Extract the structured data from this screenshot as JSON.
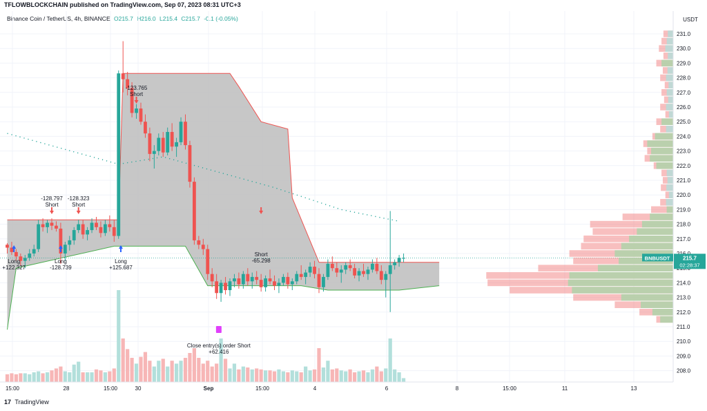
{
  "header": {
    "publisher": "TFLOWBLOCKCHAIN published on TradingView.com, Sep 07, 2023 08:31 UTC+3"
  },
  "legend": {
    "symbol": "Binance Coin / TetherUS, 4h, BINANCE",
    "open": "O215.7",
    "high": "H216.0",
    "low": "L215.4",
    "close": "C215.7",
    "change": "-0.1 (-0.05%)"
  },
  "footer": {
    "brand": "TradingView"
  },
  "colors": {
    "up": "#26a69a",
    "down": "#ef5350",
    "band": "#b2b2b2",
    "vol_up": "#b2dfdb",
    "vol_down": "#f7b6b6",
    "vp_up": "#a5d6a7",
    "vp_down": "#f28b8b",
    "ma": "#26a69a",
    "price_tag": "#26a69a"
  },
  "chart_data": {
    "type": "candlestick",
    "currency": "USDT",
    "ticker": "BNBUSDT",
    "last_price": "215.7",
    "countdown": "02:28:37",
    "y_ticks": [
      "231.0",
      "230.0",
      "229.0",
      "228.0",
      "227.0",
      "226.0",
      "225.0",
      "224.0",
      "223.0",
      "222.0",
      "221.0",
      "220.0",
      "219.0",
      "218.0",
      "217.0",
      "216.0",
      "215.0",
      "214.0",
      "213.0",
      "212.0",
      "211.0",
      "210.0",
      "209.0",
      "208.0"
    ],
    "ylim": [
      207.7,
      231.6
    ],
    "x_ticks": [
      "15:00",
      "28",
      "15:00",
      "30",
      "Sep",
      "15:00",
      "4",
      "6",
      "8",
      "15:00",
      "11",
      "13"
    ],
    "candles": [
      [
        216.6,
        216.7,
        216.0,
        216.4
      ],
      [
        216.4,
        216.8,
        215.9,
        216.1
      ],
      [
        216.1,
        216.3,
        215.5,
        215.8
      ],
      [
        215.8,
        216.0,
        215.2,
        215.5
      ],
      [
        215.5,
        215.9,
        215.0,
        215.7
      ],
      [
        215.7,
        216.3,
        215.5,
        216.0
      ],
      [
        216.0,
        216.6,
        215.8,
        216.3
      ],
      [
        216.3,
        218.3,
        216.1,
        218.0
      ],
      [
        218.0,
        218.4,
        217.5,
        217.8
      ],
      [
        217.8,
        218.3,
        217.4,
        218.1
      ],
      [
        218.1,
        218.4,
        217.6,
        217.9
      ],
      [
        217.9,
        218.2,
        217.5,
        217.7
      ],
      [
        217.7,
        218.1,
        215.3,
        216.0
      ],
      [
        216.0,
        216.8,
        215.5,
        216.6
      ],
      [
        216.6,
        217.2,
        216.2,
        216.9
      ],
      [
        216.9,
        217.8,
        216.6,
        217.6
      ],
      [
        217.6,
        218.3,
        217.4,
        218.0
      ],
      [
        218.0,
        218.3,
        217.0,
        217.3
      ],
      [
        217.3,
        217.8,
        216.9,
        217.6
      ],
      [
        217.6,
        218.4,
        217.4,
        218.1
      ],
      [
        218.1,
        218.5,
        217.6,
        217.8
      ],
      [
        217.8,
        218.2,
        217.1,
        217.4
      ],
      [
        217.4,
        218.3,
        217.2,
        218.0
      ],
      [
        218.0,
        218.6,
        217.5,
        217.8
      ],
      [
        217.8,
        218.3,
        216.8,
        217.2
      ],
      [
        217.2,
        228.5,
        217.0,
        228.3
      ],
      [
        228.3,
        230.5,
        227.0,
        227.9
      ],
      [
        227.9,
        228.4,
        226.8,
        227.3
      ],
      [
        227.3,
        227.7,
        225.3,
        225.6
      ],
      [
        225.6,
        226.2,
        225.2,
        225.9
      ],
      [
        225.9,
        226.3,
        224.8,
        225.0
      ],
      [
        225.0,
        225.5,
        223.9,
        224.2
      ],
      [
        224.2,
        224.6,
        222.3,
        222.8
      ],
      [
        222.8,
        223.4,
        221.8,
        223.0
      ],
      [
        223.0,
        224.2,
        222.7,
        223.9
      ],
      [
        223.9,
        224.3,
        222.6,
        222.9
      ],
      [
        222.9,
        224.6,
        222.7,
        224.3
      ],
      [
        224.3,
        224.9,
        223.0,
        223.3
      ],
      [
        223.3,
        223.9,
        222.6,
        223.6
      ],
      [
        223.6,
        225.3,
        223.4,
        225.0
      ],
      [
        225.0,
        225.5,
        223.1,
        223.4
      ],
      [
        223.4,
        223.7,
        220.5,
        220.9
      ],
      [
        220.9,
        221.2,
        216.6,
        216.9
      ],
      [
        216.9,
        217.2,
        216.3,
        216.6
      ],
      [
        216.6,
        217.0,
        215.9,
        216.3
      ],
      [
        216.3,
        216.6,
        214.2,
        214.6
      ],
      [
        214.6,
        215.0,
        213.7,
        214.1
      ],
      [
        214.1,
        214.6,
        212.9,
        213.3
      ],
      [
        213.3,
        214.2,
        212.7,
        214.0
      ],
      [
        214.0,
        214.4,
        213.2,
        213.5
      ],
      [
        213.5,
        214.3,
        213.1,
        214.1
      ],
      [
        214.1,
        214.6,
        213.7,
        214.3
      ],
      [
        214.3,
        214.7,
        213.6,
        213.9
      ],
      [
        213.9,
        214.8,
        213.6,
        214.6
      ],
      [
        214.6,
        215.0,
        213.8,
        214.1
      ],
      [
        214.1,
        214.7,
        213.6,
        214.4
      ],
      [
        214.4,
        214.8,
        213.9,
        214.2
      ],
      [
        214.2,
        214.6,
        213.4,
        213.7
      ],
      [
        213.7,
        214.5,
        213.4,
        214.3
      ],
      [
        214.3,
        214.9,
        213.9,
        214.1
      ],
      [
        214.1,
        214.5,
        213.5,
        213.8
      ],
      [
        213.8,
        214.3,
        213.3,
        214.0
      ],
      [
        214.0,
        214.6,
        213.8,
        214.4
      ],
      [
        214.4,
        214.7,
        213.6,
        213.9
      ],
      [
        213.9,
        214.3,
        213.5,
        214.1
      ],
      [
        214.1,
        214.8,
        213.9,
        214.6
      ],
      [
        214.6,
        215.2,
        214.2,
        214.4
      ],
      [
        214.4,
        214.9,
        213.9,
        214.7
      ],
      [
        214.7,
        215.4,
        214.4,
        215.1
      ],
      [
        215.1,
        215.5,
        214.3,
        214.6
      ],
      [
        214.6,
        215.0,
        213.3,
        213.7
      ],
      [
        213.7,
        214.6,
        213.4,
        214.4
      ],
      [
        214.4,
        215.6,
        214.2,
        215.3
      ],
      [
        215.3,
        215.8,
        214.8,
        215.0
      ],
      [
        215.0,
        215.4,
        214.4,
        214.7
      ],
      [
        214.7,
        215.2,
        214.0,
        214.9
      ],
      [
        214.9,
        215.4,
        214.6,
        215.2
      ],
      [
        215.2,
        215.6,
        214.8,
        215.0
      ],
      [
        215.0,
        215.3,
        214.3,
        214.5
      ],
      [
        214.5,
        215.0,
        214.1,
        214.8
      ],
      [
        214.8,
        215.3,
        214.4,
        214.6
      ],
      [
        214.6,
        215.1,
        214.2,
        214.9
      ],
      [
        214.9,
        215.6,
        214.7,
        215.3
      ],
      [
        215.3,
        215.7,
        214.6,
        214.8
      ],
      [
        214.8,
        215.2,
        213.9,
        214.2
      ],
      [
        214.2,
        214.8,
        213.0,
        214.6
      ],
      [
        214.6,
        218.9,
        212.0,
        215.2
      ],
      [
        215.2,
        215.6,
        214.9,
        215.4
      ],
      [
        215.4,
        215.9,
        215.1,
        215.7
      ],
      [
        215.7,
        216.0,
        215.4,
        215.7
      ]
    ],
    "volumes": [
      0.8,
      0.9,
      0.8,
      0.9,
      0.9,
      0.8,
      1.0,
      1.1,
      0.9,
      1.0,
      1.2,
      1.4,
      1.6,
      1.1,
      1.0,
      1.8,
      2.1,
      1.0,
      1.0,
      1.0,
      1.3,
      1.2,
      1.0,
      1.1,
      1.4,
      9.5,
      4.5,
      3.4,
      2.5,
      1.9,
      2.6,
      3.1,
      2.2,
      1.6,
      2.2,
      2.4,
      1.6,
      2.2,
      1.9,
      2.2,
      2.5,
      3.0,
      3.5,
      2.5,
      1.9,
      2.2,
      1.6,
      1.9,
      4.5,
      2.4,
      1.4,
      1.9,
      1.3,
      1.6,
      1.5,
      1.3,
      1.4,
      1.3,
      1.2,
      1.2,
      1.1,
      1.3,
      1.1,
      1.0,
      1.2,
      1.1,
      1.0,
      1.6,
      1.2,
      1.3,
      3.5,
      1.5,
      2.2,
      1.3,
      1.4,
      1.2,
      1.1,
      1.3,
      1.0,
      1.1,
      1.2,
      1.0,
      1.3,
      1.6,
      1.1,
      1.4,
      4.5,
      1.3,
      1.0,
      0.4
    ],
    "band": {
      "upper": [
        [
          0,
          218.3
        ],
        [
          25,
          218.3
        ],
        [
          26,
          228.3
        ],
        [
          50,
          228.3
        ],
        [
          52,
          227.4
        ],
        [
          57,
          225.0
        ],
        [
          63,
          224.5
        ],
        [
          64,
          219.8
        ],
        [
          70,
          215.4
        ],
        [
          97,
          215.4
        ]
      ],
      "lower": [
        [
          0,
          210.8
        ],
        [
          2,
          215.0
        ],
        [
          24,
          216.5
        ],
        [
          40,
          216.5
        ],
        [
          45,
          213.8
        ],
        [
          66,
          213.8
        ],
        [
          72,
          213.5
        ],
        [
          88,
          213.5
        ],
        [
          97,
          213.8
        ]
      ]
    },
    "moving_average": [
      [
        0,
        224.2
      ],
      [
        25,
        222.1
      ],
      [
        35,
        222.6
      ],
      [
        60,
        220.5
      ],
      [
        75,
        219.0
      ],
      [
        88,
        218.2
      ]
    ],
    "volume_profile": [
      [
        231.0,
        0,
        1.5
      ],
      [
        230.5,
        0,
        1.8
      ],
      [
        230.0,
        0,
        2.2
      ],
      [
        229.5,
        0,
        1.5
      ],
      [
        229.0,
        1.8,
        2.6
      ],
      [
        228.5,
        0,
        1.6
      ],
      [
        228.0,
        0,
        2.0
      ],
      [
        227.5,
        0,
        1.3
      ],
      [
        227.0,
        0,
        1.8
      ],
      [
        226.5,
        0,
        1.4
      ],
      [
        226.0,
        0,
        2.0
      ],
      [
        225.5,
        0,
        1.2
      ],
      [
        225.0,
        1.8,
        2.6
      ],
      [
        224.5,
        0,
        2.0
      ],
      [
        224.0,
        2.8,
        3.2
      ],
      [
        223.5,
        4.0,
        4.6
      ],
      [
        223.0,
        3.4,
        4.0
      ],
      [
        222.5,
        3.6,
        4.4
      ],
      [
        222.0,
        2.6,
        3.0
      ],
      [
        221.5,
        0,
        1.8
      ],
      [
        221.0,
        0,
        1.6
      ],
      [
        220.5,
        0,
        1.9
      ],
      [
        220.0,
        0,
        1.2
      ],
      [
        219.5,
        0,
        2.0
      ],
      [
        219.0,
        1.0,
        3.4
      ],
      [
        218.5,
        3.6,
        7.8
      ],
      [
        218.0,
        4.8,
        12.8
      ],
      [
        217.5,
        5.6,
        12.4
      ],
      [
        217.0,
        6.8,
        13.8
      ],
      [
        216.5,
        8.0,
        14.2
      ],
      [
        216.0,
        9.0,
        16.0
      ],
      [
        215.5,
        8.4,
        15.4
      ],
      [
        215.0,
        11.6,
        20.8
      ],
      [
        214.5,
        16.0,
        28.8
      ],
      [
        214.0,
        16.2,
        28.6
      ],
      [
        213.5,
        15.6,
        25.2
      ],
      [
        213.0,
        8.0,
        15.4
      ],
      [
        212.5,
        5.0,
        9.0
      ],
      [
        212.0,
        3.2,
        5.2
      ],
      [
        211.5,
        2.0,
        2.6
      ]
    ],
    "trades": [
      {
        "i": 1.5,
        "type": "entry-long",
        "label": "Long",
        "pnl": "+122.327"
      },
      {
        "i": 10,
        "type": "entry-short",
        "label": "Short",
        "pnl": "-128.797"
      },
      {
        "i": 12,
        "type": "entry-long",
        "label": "Long",
        "pnl": "-128.739"
      },
      {
        "i": 16,
        "type": "entry-short",
        "label": "Short",
        "pnl": "-128.323"
      },
      {
        "i": 25.5,
        "type": "entry-long",
        "label": "Long",
        "pnl": "+125.687"
      },
      {
        "i": 29,
        "type": "entry-short",
        "label": "Short",
        "pnl": "-123.765"
      },
      {
        "i": 47.5,
        "type": "close",
        "label": "Close entry(s) order Short",
        "pnl": "+62.416"
      },
      {
        "i": 57,
        "type": "entry-short",
        "label": "Short",
        "pnl": "-65.298"
      }
    ]
  }
}
